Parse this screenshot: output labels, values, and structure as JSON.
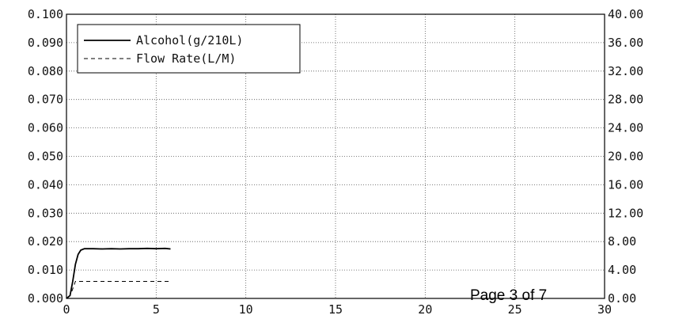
{
  "chart_data": {
    "type": "line",
    "title": "",
    "xlabel": "",
    "ylabel": "",
    "xlim": [
      0,
      30
    ],
    "ylim_left": [
      0,
      0.1
    ],
    "ylim_right": [
      0,
      40
    ],
    "x_ticks": [
      "0",
      "5",
      "10",
      "15",
      "20",
      "25",
      "30"
    ],
    "y_left_ticks": [
      "0.000",
      "0.010",
      "0.020",
      "0.030",
      "0.040",
      "0.050",
      "0.060",
      "0.070",
      "0.080",
      "0.090",
      "0.100"
    ],
    "y_right_ticks": [
      "0.00",
      "4.00",
      "8.00",
      "12.00",
      "16.00",
      "20.00",
      "24.00",
      "28.00",
      "32.00",
      "36.00",
      "40.00"
    ],
    "grid": true,
    "legend_position": "top-left",
    "series": [
      {
        "name": "Alcohol(g/210L)",
        "axis": "left",
        "style": "solid",
        "x": [
          0,
          0.2,
          0.35,
          0.5,
          0.65,
          0.8,
          1.0,
          1.2,
          1.5,
          2.0,
          2.5,
          3.0,
          3.5,
          4.0,
          4.5,
          5.0,
          5.5,
          5.8
        ],
        "y": [
          0,
          0.001,
          0.006,
          0.012,
          0.0155,
          0.017,
          0.0175,
          0.0175,
          0.0175,
          0.0174,
          0.0175,
          0.0174,
          0.0175,
          0.0175,
          0.0176,
          0.0175,
          0.0176,
          0.0174
        ]
      },
      {
        "name": "Flow Rate(L/M)",
        "axis": "right",
        "style": "dashed",
        "x": [
          0.3,
          0.5,
          1.0,
          2.0,
          3.0,
          4.0,
          5.0,
          5.8
        ],
        "y": [
          1.0,
          2.4,
          2.4,
          2.4,
          2.4,
          2.4,
          2.4,
          2.4
        ]
      }
    ]
  },
  "page_label": "Page 3 of 7"
}
